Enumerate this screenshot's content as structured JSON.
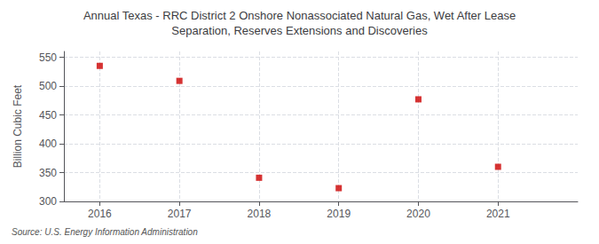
{
  "chart_data": {
    "type": "scatter",
    "title": "Annual Texas - RRC District 2 Onshore Nonassociated Natural Gas, Wet After Lease\nSeparation, Reserves Extensions and Discoveries",
    "ylabel": "Billion Cubic Feet",
    "source": "Source: U.S. Energy Information Administration",
    "x": [
      2016,
      2017,
      2018,
      2019,
      2020,
      2021
    ],
    "values": [
      535,
      509,
      341,
      323,
      477,
      360
    ],
    "color": "#cc0000",
    "marker": "square",
    "xlim": [
      2015.55,
      2022.0
    ],
    "xticks": [
      2016,
      2017,
      2018,
      2019,
      2020,
      2021
    ],
    "ylim": [
      300,
      560
    ],
    "yticks": [
      300,
      350,
      400,
      450,
      500,
      550
    ],
    "grid": true
  }
}
